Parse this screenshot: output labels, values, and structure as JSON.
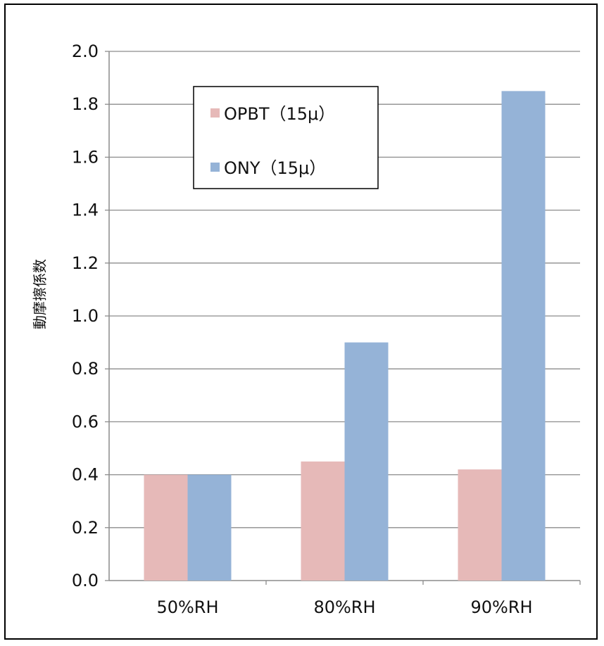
{
  "chart_data": {
    "type": "bar",
    "categories": [
      "50%RH",
      "80%RH",
      "90%RH"
    ],
    "series": [
      {
        "name": "OPBT（15μ）",
        "values": [
          0.4,
          0.45,
          0.42
        ],
        "color": "#e6b9b8"
      },
      {
        "name": "ONY（15μ）",
        "values": [
          0.4,
          0.9,
          1.85
        ],
        "color": "#95b3d7"
      }
    ],
    "title": "",
    "xlabel": "",
    "ylabel": "動摩擦係数",
    "ylim": [
      0,
      2.0
    ],
    "yticks": [
      "0.0",
      "0.2",
      "0.4",
      "0.6",
      "0.8",
      "1.0",
      "1.2",
      "1.4",
      "1.6",
      "1.8",
      "2.0"
    ],
    "grid": true,
    "legend_position": "top-left"
  }
}
